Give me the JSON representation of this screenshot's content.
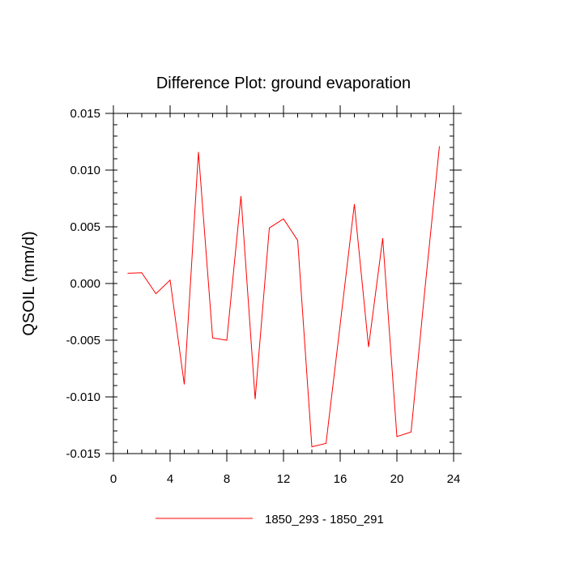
{
  "chart_data": {
    "type": "line",
    "title": "Difference Plot: ground evaporation",
    "xlabel": "",
    "ylabel": "QSOIL  (mm/d)",
    "xlim": [
      0,
      24
    ],
    "ylim": [
      -0.015,
      0.015
    ],
    "x_ticks": [
      0,
      4,
      8,
      12,
      16,
      20,
      24
    ],
    "x_tick_labels": [
      "0",
      "4",
      "8",
      "12",
      "16",
      "20",
      "24"
    ],
    "x_minor_step": 1,
    "y_ticks": [
      -0.015,
      -0.01,
      -0.005,
      0.0,
      0.005,
      0.01,
      0.015
    ],
    "y_tick_labels": [
      "-0.015",
      "-0.010",
      "-0.005",
      "0.000",
      "0.005",
      "0.010",
      "0.015"
    ],
    "y_minor_step": 0.001,
    "grid": false,
    "legend_position": "bottom-center",
    "series": [
      {
        "name": "1850_293 - 1850_291",
        "color": "#ff0000",
        "x": [
          1,
          2,
          3,
          4,
          5,
          6,
          7,
          8,
          9,
          10,
          11,
          12,
          13,
          14,
          15,
          16,
          17,
          18,
          19,
          20,
          21,
          22,
          23
        ],
        "values": [
          0.0009,
          0.00095,
          -0.0009,
          0.0003,
          -0.0089,
          0.0116,
          -0.0048,
          -0.005,
          0.0077,
          -0.0102,
          0.0049,
          0.0057,
          0.0038,
          -0.0144,
          -0.0141,
          -0.0036,
          0.007,
          -0.0056,
          0.004,
          -0.0135,
          -0.0131,
          -0.0002,
          0.0121
        ]
      }
    ]
  }
}
